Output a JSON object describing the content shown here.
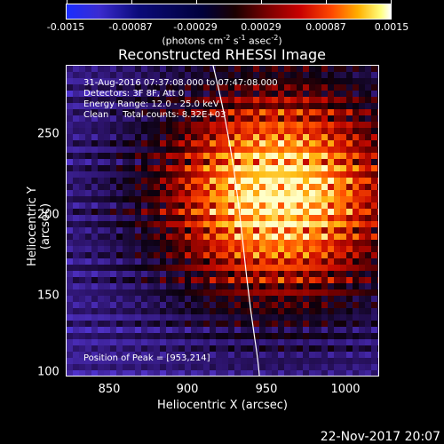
{
  "colorbar": {
    "tick_labels": [
      "-0.0015",
      "-0.00087",
      "-0.00029",
      "0.00029",
      "0.00087",
      "0.0015"
    ],
    "units_main": "(photons cm",
    "units_exp1": "-2",
    "units_mid1": " s",
    "units_exp2": "-1",
    "units_mid2": " asec",
    "units_exp3": "-2",
    "units_end": ")"
  },
  "title": "Reconstructed RHESSI Image",
  "info": {
    "line1": "31-Aug-2016 07:37:08.000 to 07:47:08.000",
    "line2": "Detectors: 3F 8F, Att 0",
    "line3": "Energy Range: 12.0 - 25.0 keV",
    "line4": "Clean     Total counts: 8.32E+03",
    "peak": "Position of Peak = [953,214]"
  },
  "axes": {
    "xlabel": "Heliocentric X (arcsec)",
    "ylabel": "Heliocentric Y (arcsec)",
    "x_ticks": [
      "850",
      "900",
      "950",
      "1000"
    ],
    "y_ticks": [
      "250",
      "200",
      "150",
      "100"
    ]
  },
  "timestamp": "22-Nov-2017 20:07"
}
